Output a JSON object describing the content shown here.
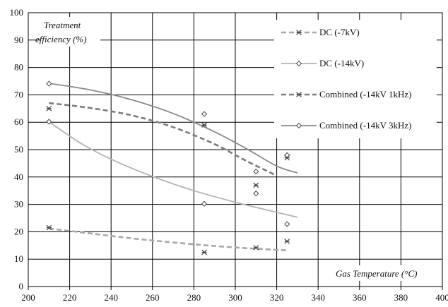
{
  "chart_data": {
    "type": "scatter",
    "title": "",
    "xlabel": "Gas Temperature (°C)",
    "ylabel": "Treatment efficiency (%)",
    "ylabel_lines": [
      "Treatment",
      "efficiency (%)"
    ],
    "xlim": [
      200,
      400
    ],
    "ylim": [
      0,
      100
    ],
    "x_ticks": [
      200,
      220,
      240,
      260,
      280,
      300,
      320,
      340,
      360,
      380,
      400
    ],
    "y_ticks": [
      0,
      10,
      20,
      30,
      40,
      50,
      60,
      70,
      80,
      90,
      100
    ],
    "grid": true,
    "legend_position": "top-right",
    "series": [
      {
        "name": "DC (-7kV)",
        "marker": "star",
        "line_style": "dashed",
        "color": "#a8a8a8",
        "points": [
          [
            210,
            21.5
          ],
          [
            285,
            12.5
          ],
          [
            310,
            14.2
          ],
          [
            325,
            16.5
          ]
        ],
        "trend": [
          [
            210,
            21.2
          ],
          [
            230,
            19.4
          ],
          [
            250,
            17.6
          ],
          [
            270,
            16.1
          ],
          [
            290,
            14.8
          ],
          [
            310,
            13.8
          ],
          [
            325,
            13.2
          ]
        ]
      },
      {
        "name": "DC (-14kV)",
        "marker": "diamond",
        "line_style": "solid",
        "color": "#b4b4b4",
        "points": [
          [
            210,
            60.2
          ],
          [
            285,
            30.2
          ],
          [
            310,
            34
          ],
          [
            325,
            22.8
          ]
        ],
        "trend": [
          [
            210,
            60.2
          ],
          [
            225,
            52.5
          ],
          [
            240,
            46.5
          ],
          [
            260,
            40.2
          ],
          [
            280,
            35
          ],
          [
            300,
            30.8
          ],
          [
            315,
            28
          ],
          [
            330,
            25.3
          ]
        ]
      },
      {
        "name": "Combined (-14kV 1kHz)",
        "marker": "star",
        "line_style": "dashed",
        "color": "#7c7c7c",
        "points": [
          [
            210,
            65
          ],
          [
            285,
            59
          ],
          [
            310,
            37
          ],
          [
            325,
            47
          ]
        ],
        "trend": [
          [
            210,
            67
          ],
          [
            230,
            65.2
          ],
          [
            250,
            62.5
          ],
          [
            270,
            58.2
          ],
          [
            290,
            52
          ],
          [
            305,
            46
          ],
          [
            320,
            40.5
          ]
        ]
      },
      {
        "name": "Combined (-14kV 3kHz)",
        "marker": "diamond",
        "line_style": "solid",
        "color": "#8a8a8a",
        "points": [
          [
            210,
            74.1
          ],
          [
            285,
            63
          ],
          [
            310,
            42
          ],
          [
            325,
            48
          ]
        ],
        "trend": [
          [
            210,
            74.2
          ],
          [
            230,
            71.8
          ],
          [
            250,
            68.2
          ],
          [
            270,
            63.2
          ],
          [
            290,
            56.5
          ],
          [
            305,
            50.5
          ],
          [
            320,
            44
          ],
          [
            330,
            41.5
          ]
        ]
      }
    ]
  }
}
